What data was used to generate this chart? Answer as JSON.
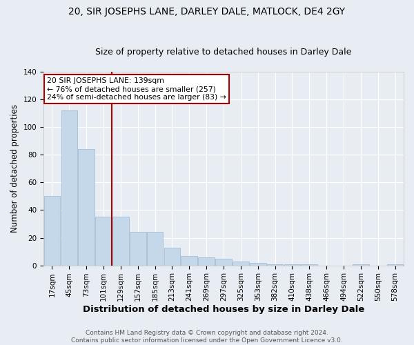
{
  "title": "20, SIR JOSEPHS LANE, DARLEY DALE, MATLOCK, DE4 2GY",
  "subtitle": "Size of property relative to detached houses in Darley Dale",
  "xlabel": "Distribution of detached houses by size in Darley Dale",
  "ylabel": "Number of detached properties",
  "bin_labels": [
    "17sqm",
    "45sqm",
    "73sqm",
    "101sqm",
    "129sqm",
    "157sqm",
    "185sqm",
    "213sqm",
    "241sqm",
    "269sqm",
    "297sqm",
    "325sqm",
    "353sqm",
    "382sqm",
    "410sqm",
    "438sqm",
    "466sqm",
    "494sqm",
    "522sqm",
    "550sqm",
    "578sqm"
  ],
  "bar_heights": [
    50,
    112,
    84,
    35,
    35,
    24,
    24,
    13,
    7,
    6,
    5,
    3,
    2,
    1,
    1,
    1,
    0,
    0,
    1,
    0,
    1
  ],
  "bar_color": "#c5d8ea",
  "bar_edge_color": "#9ab8d0",
  "background_color": "#e8edf4",
  "grid_color": "#ffffff",
  "red_line_x": 3.5,
  "red_line_color": "#aa0000",
  "annotation_text": "20 SIR JOSEPHS LANE: 139sqm\n← 76% of detached houses are smaller (257)\n24% of semi-detached houses are larger (83) →",
  "annotation_box_color": "#ffffff",
  "annotation_box_edge": "#aa0000",
  "footer_text": "Contains HM Land Registry data © Crown copyright and database right 2024.\nContains public sector information licensed under the Open Government Licence v3.0.",
  "ylim": [
    0,
    140
  ],
  "yticks": [
    0,
    20,
    40,
    60,
    80,
    100,
    120,
    140
  ],
  "title_fontsize": 10,
  "subtitle_fontsize": 9,
  "ylabel_fontsize": 8.5,
  "xlabel_fontsize": 9.5,
  "tick_fontsize": 7.5,
  "footer_fontsize": 6.5
}
